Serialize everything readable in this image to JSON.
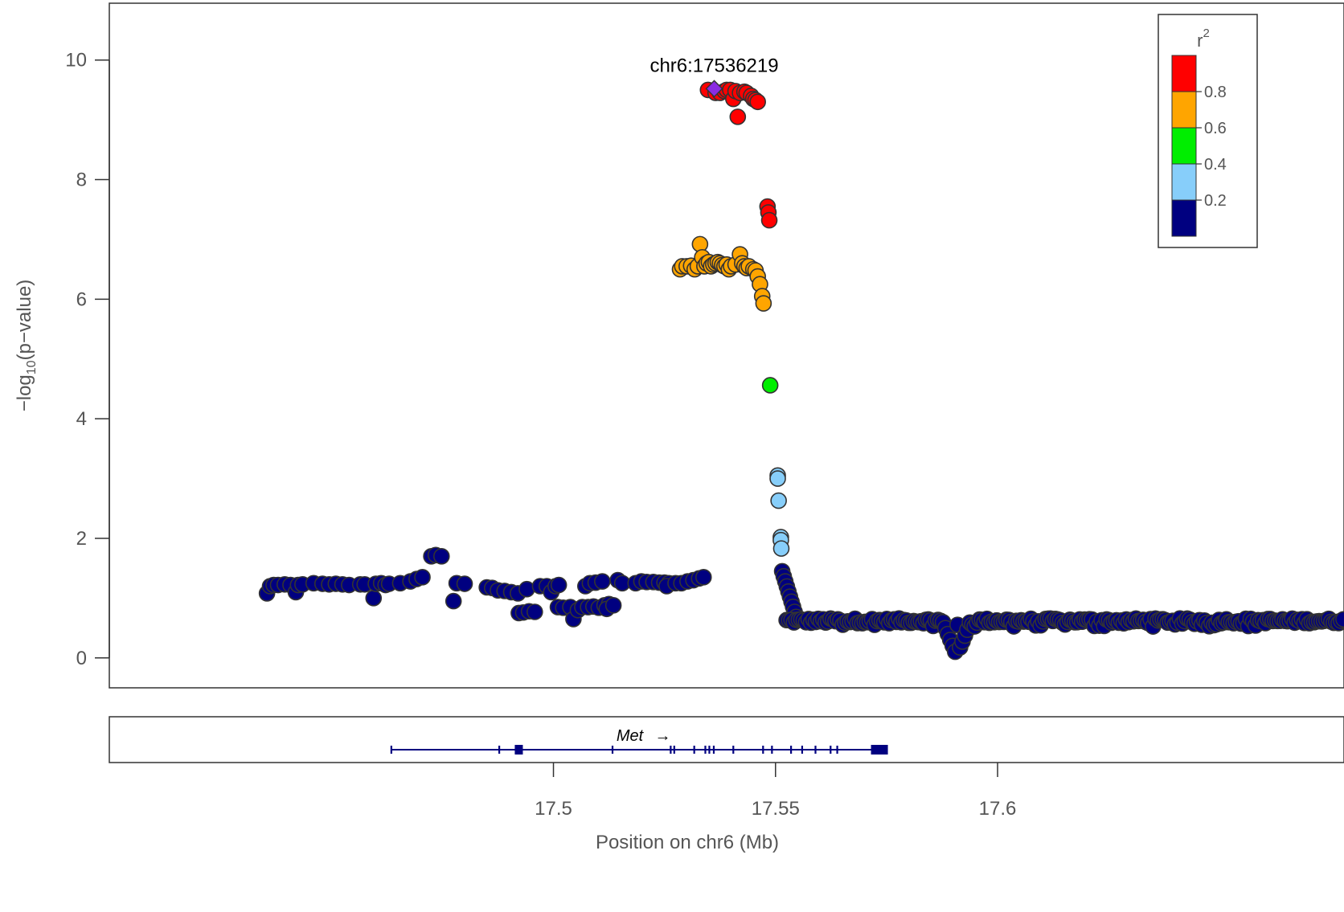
{
  "chart_data": {
    "type": "scatter",
    "title": "",
    "xlabel": "Position on chr6 (Mb)",
    "ylabel_prefix": "−log",
    "ylabel_subscript": "10",
    "ylabel_suffix": "(p−value)",
    "xlim": [
      17.4,
      17.678
    ],
    "ylim": [
      -0.5,
      10.95
    ],
    "x_ticks": [
      17.5,
      17.55,
      17.6
    ],
    "x_tick_labels": [
      "17.5",
      "17.55",
      "17.6"
    ],
    "y_ticks": [
      0,
      2,
      4,
      6,
      8,
      10
    ],
    "y_tick_labels": [
      "0",
      "2",
      "4",
      "6",
      "8",
      "10"
    ],
    "grid": false,
    "lead_snp": {
      "label": "chr6:17536219",
      "x": 17.5362,
      "y": 9.52,
      "color": "#8a2be2"
    },
    "legend": {
      "placement": "top-right",
      "title": "r",
      "title_superscript": "2",
      "bins": [
        {
          "color": "#ff0000",
          "range": "0.8-1.0"
        },
        {
          "color": "#ffa500",
          "range": "0.6-0.8"
        },
        {
          "color": "#00ee00",
          "range": "0.4-0.6"
        },
        {
          "color": "#87cefa",
          "range": "0.2-0.4"
        },
        {
          "color": "#000080",
          "range": "0.0-0.2"
        }
      ],
      "tick_labels": [
        "0.8",
        "0.6",
        "0.4",
        "0.2"
      ]
    },
    "series": [
      {
        "r2_bin": "0.8-1.0",
        "color": "#ff0000",
        "points": [
          [
            17.5348,
            9.5
          ],
          [
            17.5365,
            9.45
          ],
          [
            17.5375,
            9.45
          ],
          [
            17.5385,
            9.48
          ],
          [
            17.539,
            9.5
          ],
          [
            17.5398,
            9.5
          ],
          [
            17.5405,
            9.35
          ],
          [
            17.541,
            9.48
          ],
          [
            17.5415,
            9.05
          ],
          [
            17.542,
            9.45
          ],
          [
            17.543,
            9.47
          ],
          [
            17.5435,
            9.45
          ],
          [
            17.5445,
            9.4
          ],
          [
            17.545,
            9.35
          ],
          [
            17.5455,
            9.33
          ],
          [
            17.546,
            9.3
          ],
          [
            17.5482,
            7.55
          ],
          [
            17.5484,
            7.45
          ],
          [
            17.5486,
            7.32
          ]
        ]
      },
      {
        "r2_bin": "0.6-0.8",
        "color": "#ffa500",
        "points": [
          [
            17.5285,
            6.5
          ],
          [
            17.529,
            6.55
          ],
          [
            17.53,
            6.55
          ],
          [
            17.531,
            6.56
          ],
          [
            17.5318,
            6.5
          ],
          [
            17.5325,
            6.55
          ],
          [
            17.533,
            6.92
          ],
          [
            17.5335,
            6.7
          ],
          [
            17.534,
            6.55
          ],
          [
            17.5345,
            6.6
          ],
          [
            17.535,
            6.62
          ],
          [
            17.5355,
            6.55
          ],
          [
            17.536,
            6.58
          ],
          [
            17.5365,
            6.6
          ],
          [
            17.537,
            6.62
          ],
          [
            17.5375,
            6.6
          ],
          [
            17.538,
            6.57
          ],
          [
            17.5385,
            6.55
          ],
          [
            17.539,
            6.58
          ],
          [
            17.5395,
            6.5
          ],
          [
            17.54,
            6.55
          ],
          [
            17.541,
            6.58
          ],
          [
            17.542,
            6.75
          ],
          [
            17.5425,
            6.6
          ],
          [
            17.543,
            6.55
          ],
          [
            17.5435,
            6.52
          ],
          [
            17.544,
            6.55
          ],
          [
            17.545,
            6.5
          ],
          [
            17.5455,
            6.48
          ],
          [
            17.546,
            6.38
          ],
          [
            17.5465,
            6.25
          ],
          [
            17.547,
            6.05
          ],
          [
            17.5473,
            5.93
          ]
        ]
      },
      {
        "r2_bin": "0.4-0.6",
        "color": "#00ee00",
        "points": [
          [
            17.5488,
            4.56
          ]
        ]
      },
      {
        "r2_bin": "0.2-0.4",
        "color": "#87cefa",
        "points": [
          [
            17.5505,
            3.05
          ],
          [
            17.5505,
            3.0
          ],
          [
            17.5507,
            2.63
          ],
          [
            17.5512,
            2.02
          ],
          [
            17.5512,
            1.97
          ],
          [
            17.5513,
            1.83
          ]
        ]
      },
      {
        "r2_bin": "0.0-0.2",
        "color": "#000080",
        "generated": "dense near-zero background of low-LD variants across the region"
      }
    ]
  },
  "gene_track": {
    "genes": [
      {
        "name": "Met",
        "strand_arrow": "→",
        "start": 17.4635,
        "end": 17.5745,
        "color": "#000080"
      }
    ]
  }
}
